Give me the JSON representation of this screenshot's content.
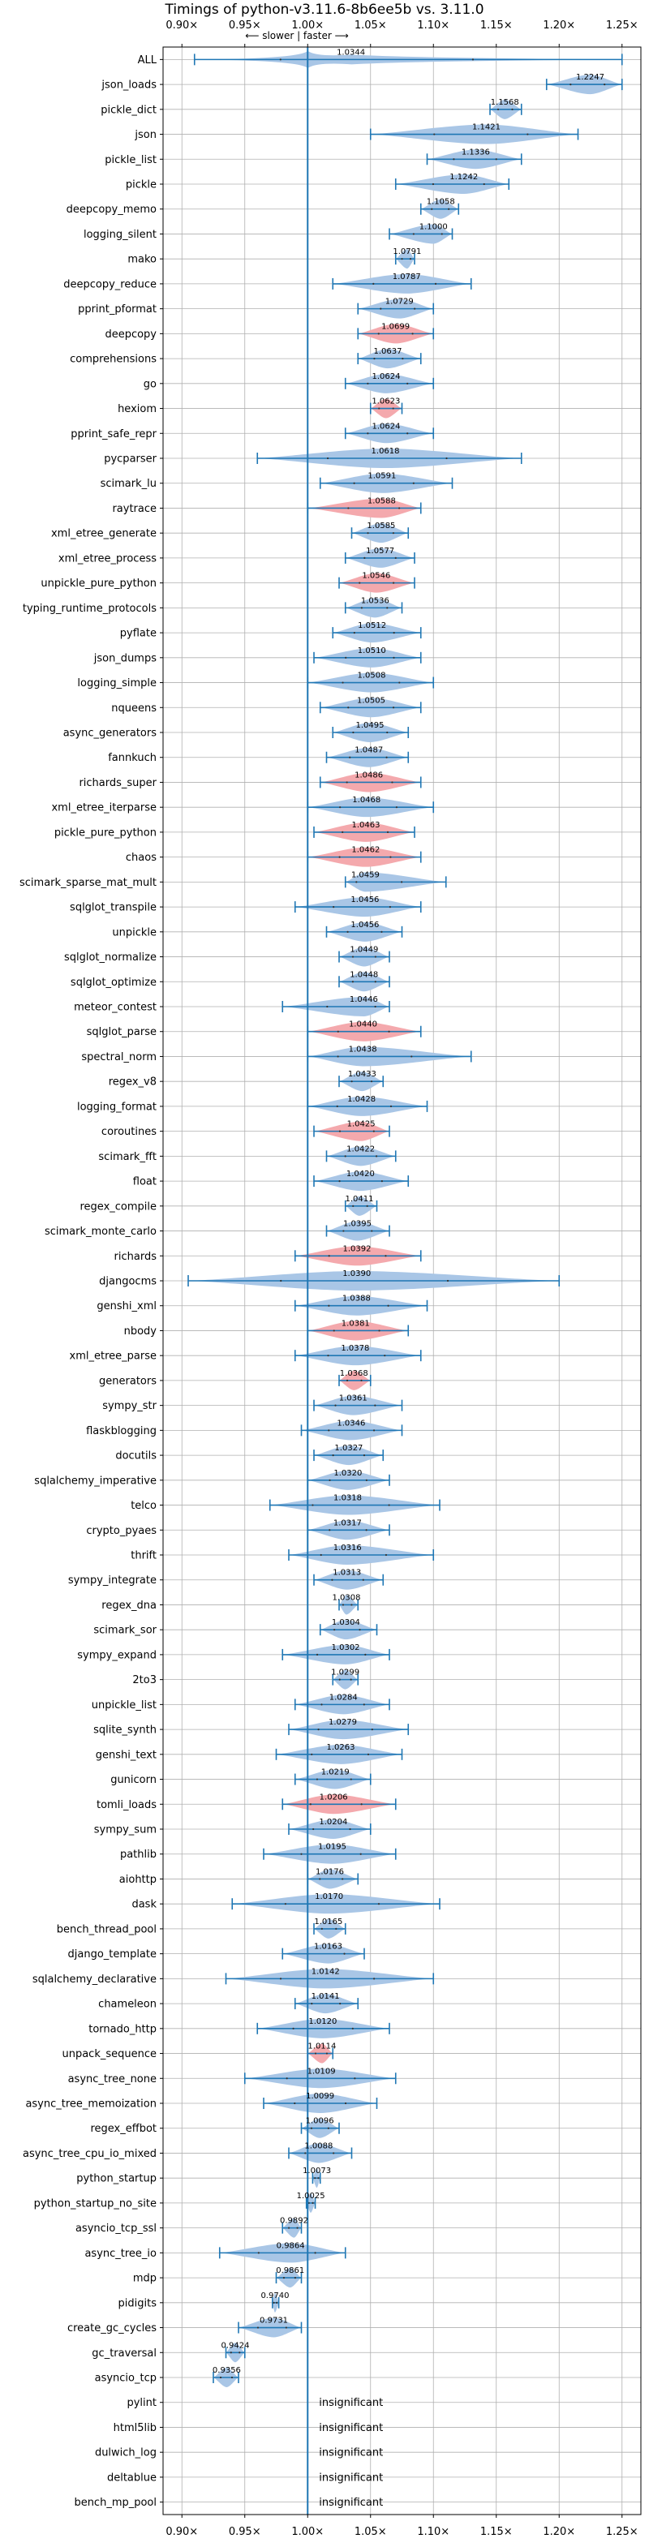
{
  "chart_data": {
    "type": "violin",
    "title": "Timings of python-v3.11.6-8b6ee5b vs. 3.11.0",
    "direction_label": "⟵ slower | faster ⟶",
    "x_ticks": [
      0.9,
      0.95,
      1.0,
      1.05,
      1.1,
      1.15,
      1.2,
      1.25
    ],
    "x_tick_labels": [
      "0.90×",
      "0.95×",
      "1.00×",
      "1.05×",
      "1.10×",
      "1.15×",
      "1.20×",
      "1.25×"
    ],
    "xlim": [
      0.885,
      1.265
    ],
    "grid": true,
    "reference_line": 1.0,
    "insignificant_label": "insignificant",
    "colors": {
      "faster": "#a9c6e6",
      "slower": "#f4a9ad",
      "line": "#1f77b4",
      "grid": "#b0b0b0"
    },
    "benchmarks": [
      {
        "name": "ALL",
        "value": 1.0344,
        "lo": 0.91,
        "hi": 1.25,
        "color": "blue",
        "shape": "all"
      },
      {
        "name": "json_loads",
        "value": 1.2247,
        "lo": 1.19,
        "hi": 1.25,
        "color": "blue"
      },
      {
        "name": "pickle_dict",
        "value": 1.1568,
        "lo": 1.145,
        "hi": 1.17,
        "color": "blue"
      },
      {
        "name": "json",
        "value": 1.1421,
        "lo": 1.05,
        "hi": 1.215,
        "color": "blue"
      },
      {
        "name": "pickle_list",
        "value": 1.1336,
        "lo": 1.095,
        "hi": 1.17,
        "color": "blue"
      },
      {
        "name": "pickle",
        "value": 1.1242,
        "lo": 1.07,
        "hi": 1.16,
        "color": "blue"
      },
      {
        "name": "deepcopy_memo",
        "value": 1.1058,
        "lo": 1.09,
        "hi": 1.12,
        "color": "blue"
      },
      {
        "name": "logging_silent",
        "value": 1.1,
        "lo": 1.065,
        "hi": 1.115,
        "color": "blue"
      },
      {
        "name": "mako",
        "value": 1.0791,
        "lo": 1.07,
        "hi": 1.085,
        "color": "blue"
      },
      {
        "name": "deepcopy_reduce",
        "value": 1.0787,
        "lo": 1.02,
        "hi": 1.13,
        "color": "blue"
      },
      {
        "name": "pprint_pformat",
        "value": 1.0729,
        "lo": 1.04,
        "hi": 1.1,
        "color": "blue"
      },
      {
        "name": "deepcopy",
        "value": 1.0699,
        "lo": 1.04,
        "hi": 1.1,
        "color": "red"
      },
      {
        "name": "comprehensions",
        "value": 1.0637,
        "lo": 1.04,
        "hi": 1.09,
        "color": "blue"
      },
      {
        "name": "go",
        "value": 1.0624,
        "lo": 1.03,
        "hi": 1.1,
        "color": "blue"
      },
      {
        "name": "hexiom",
        "value": 1.0623,
        "lo": 1.05,
        "hi": 1.075,
        "color": "red"
      },
      {
        "name": "pprint_safe_repr",
        "value": 1.0624,
        "lo": 1.03,
        "hi": 1.1,
        "color": "blue"
      },
      {
        "name": "pycparser",
        "value": 1.0618,
        "lo": 0.96,
        "hi": 1.17,
        "color": "blue"
      },
      {
        "name": "scimark_lu",
        "value": 1.0591,
        "lo": 1.01,
        "hi": 1.115,
        "color": "blue"
      },
      {
        "name": "raytrace",
        "value": 1.0588,
        "lo": 1.0,
        "hi": 1.09,
        "color": "red"
      },
      {
        "name": "xml_etree_generate",
        "value": 1.0585,
        "lo": 1.035,
        "hi": 1.08,
        "color": "blue"
      },
      {
        "name": "xml_etree_process",
        "value": 1.0577,
        "lo": 1.03,
        "hi": 1.085,
        "color": "blue"
      },
      {
        "name": "unpickle_pure_python",
        "value": 1.0546,
        "lo": 1.025,
        "hi": 1.085,
        "color": "red"
      },
      {
        "name": "typing_runtime_protocols",
        "value": 1.0536,
        "lo": 1.03,
        "hi": 1.075,
        "color": "blue"
      },
      {
        "name": "pyflate",
        "value": 1.0512,
        "lo": 1.02,
        "hi": 1.09,
        "color": "blue"
      },
      {
        "name": "json_dumps",
        "value": 1.051,
        "lo": 1.005,
        "hi": 1.09,
        "color": "blue"
      },
      {
        "name": "logging_simple",
        "value": 1.0508,
        "lo": 1.0,
        "hi": 1.1,
        "color": "blue"
      },
      {
        "name": "nqueens",
        "value": 1.0505,
        "lo": 1.01,
        "hi": 1.09,
        "color": "blue"
      },
      {
        "name": "async_generators",
        "value": 1.0495,
        "lo": 1.02,
        "hi": 1.08,
        "color": "blue"
      },
      {
        "name": "fannkuch",
        "value": 1.0487,
        "lo": 1.015,
        "hi": 1.08,
        "color": "blue"
      },
      {
        "name": "richards_super",
        "value": 1.0486,
        "lo": 1.01,
        "hi": 1.09,
        "color": "red"
      },
      {
        "name": "xml_etree_iterparse",
        "value": 1.0468,
        "lo": 1.0,
        "hi": 1.1,
        "color": "blue"
      },
      {
        "name": "pickle_pure_python",
        "value": 1.0463,
        "lo": 1.005,
        "hi": 1.085,
        "color": "red"
      },
      {
        "name": "chaos",
        "value": 1.0462,
        "lo": 1.0,
        "hi": 1.09,
        "color": "red"
      },
      {
        "name": "scimark_sparse_mat_mult",
        "value": 1.0459,
        "lo": 1.03,
        "hi": 1.11,
        "color": "blue"
      },
      {
        "name": "sqlglot_transpile",
        "value": 1.0456,
        "lo": 0.99,
        "hi": 1.09,
        "color": "blue"
      },
      {
        "name": "unpickle",
        "value": 1.0456,
        "lo": 1.015,
        "hi": 1.075,
        "color": "blue"
      },
      {
        "name": "sqlglot_normalize",
        "value": 1.0449,
        "lo": 1.025,
        "hi": 1.065,
        "color": "blue"
      },
      {
        "name": "sqlglot_optimize",
        "value": 1.0448,
        "lo": 1.025,
        "hi": 1.065,
        "color": "blue"
      },
      {
        "name": "meteor_contest",
        "value": 1.0446,
        "lo": 0.98,
        "hi": 1.065,
        "color": "blue"
      },
      {
        "name": "sqlglot_parse",
        "value": 1.044,
        "lo": 1.0,
        "hi": 1.09,
        "color": "red"
      },
      {
        "name": "spectral_norm",
        "value": 1.0438,
        "lo": 1.0,
        "hi": 1.13,
        "color": "blue"
      },
      {
        "name": "regex_v8",
        "value": 1.0433,
        "lo": 1.025,
        "hi": 1.06,
        "color": "blue"
      },
      {
        "name": "logging_format",
        "value": 1.0428,
        "lo": 1.0,
        "hi": 1.095,
        "color": "blue"
      },
      {
        "name": "coroutines",
        "value": 1.0425,
        "lo": 1.005,
        "hi": 1.065,
        "color": "red"
      },
      {
        "name": "scimark_fft",
        "value": 1.0422,
        "lo": 1.015,
        "hi": 1.07,
        "color": "blue"
      },
      {
        "name": "float",
        "value": 1.042,
        "lo": 1.005,
        "hi": 1.08,
        "color": "blue"
      },
      {
        "name": "regex_compile",
        "value": 1.0411,
        "lo": 1.03,
        "hi": 1.055,
        "color": "blue"
      },
      {
        "name": "scimark_monte_carlo",
        "value": 1.0395,
        "lo": 1.015,
        "hi": 1.065,
        "color": "blue"
      },
      {
        "name": "richards",
        "value": 1.0392,
        "lo": 0.99,
        "hi": 1.09,
        "color": "red"
      },
      {
        "name": "djangocms",
        "value": 1.039,
        "lo": 0.905,
        "hi": 1.2,
        "color": "blue"
      },
      {
        "name": "genshi_xml",
        "value": 1.0388,
        "lo": 0.99,
        "hi": 1.095,
        "color": "blue"
      },
      {
        "name": "nbody",
        "value": 1.0381,
        "lo": 1.0,
        "hi": 1.08,
        "color": "red"
      },
      {
        "name": "xml_etree_parse",
        "value": 1.0378,
        "lo": 0.99,
        "hi": 1.09,
        "color": "blue"
      },
      {
        "name": "generators",
        "value": 1.0368,
        "lo": 1.025,
        "hi": 1.05,
        "color": "red"
      },
      {
        "name": "sympy_str",
        "value": 1.0361,
        "lo": 1.005,
        "hi": 1.075,
        "color": "blue"
      },
      {
        "name": "flaskblogging",
        "value": 1.0346,
        "lo": 0.995,
        "hi": 1.075,
        "color": "blue"
      },
      {
        "name": "docutils",
        "value": 1.0327,
        "lo": 1.005,
        "hi": 1.06,
        "color": "blue"
      },
      {
        "name": "sqlalchemy_imperative",
        "value": 1.032,
        "lo": 1.0,
        "hi": 1.065,
        "color": "blue"
      },
      {
        "name": "telco",
        "value": 1.0318,
        "lo": 0.97,
        "hi": 1.105,
        "color": "blue"
      },
      {
        "name": "crypto_pyaes",
        "value": 1.0317,
        "lo": 1.0,
        "hi": 1.065,
        "color": "blue"
      },
      {
        "name": "thrift",
        "value": 1.0316,
        "lo": 0.985,
        "hi": 1.1,
        "color": "blue"
      },
      {
        "name": "sympy_integrate",
        "value": 1.0313,
        "lo": 1.005,
        "hi": 1.06,
        "color": "blue"
      },
      {
        "name": "regex_dna",
        "value": 1.0308,
        "lo": 1.025,
        "hi": 1.04,
        "color": "blue"
      },
      {
        "name": "scimark_sor",
        "value": 1.0304,
        "lo": 1.01,
        "hi": 1.055,
        "color": "blue"
      },
      {
        "name": "sympy_expand",
        "value": 1.0302,
        "lo": 0.98,
        "hi": 1.065,
        "color": "blue"
      },
      {
        "name": "2to3",
        "value": 1.0299,
        "lo": 1.02,
        "hi": 1.04,
        "color": "blue"
      },
      {
        "name": "unpickle_list",
        "value": 1.0284,
        "lo": 0.99,
        "hi": 1.065,
        "color": "blue"
      },
      {
        "name": "sqlite_synth",
        "value": 1.0279,
        "lo": 0.985,
        "hi": 1.08,
        "color": "blue"
      },
      {
        "name": "genshi_text",
        "value": 1.0263,
        "lo": 0.975,
        "hi": 1.075,
        "color": "blue"
      },
      {
        "name": "gunicorn",
        "value": 1.0219,
        "lo": 0.99,
        "hi": 1.05,
        "color": "blue"
      },
      {
        "name": "tomli_loads",
        "value": 1.0206,
        "lo": 0.98,
        "hi": 1.07,
        "color": "red"
      },
      {
        "name": "sympy_sum",
        "value": 1.0204,
        "lo": 0.985,
        "hi": 1.05,
        "color": "blue"
      },
      {
        "name": "pathlib",
        "value": 1.0195,
        "lo": 0.965,
        "hi": 1.07,
        "color": "blue"
      },
      {
        "name": "aiohttp",
        "value": 1.0176,
        "lo": 1.0,
        "hi": 1.04,
        "color": "blue"
      },
      {
        "name": "dask",
        "value": 1.017,
        "lo": 0.94,
        "hi": 1.105,
        "color": "blue"
      },
      {
        "name": "bench_thread_pool",
        "value": 1.0165,
        "lo": 1.005,
        "hi": 1.03,
        "color": "blue"
      },
      {
        "name": "django_template",
        "value": 1.0163,
        "lo": 0.98,
        "hi": 1.045,
        "color": "blue"
      },
      {
        "name": "sqlalchemy_declarative",
        "value": 1.0142,
        "lo": 0.935,
        "hi": 1.1,
        "color": "blue"
      },
      {
        "name": "chameleon",
        "value": 1.0141,
        "lo": 0.99,
        "hi": 1.04,
        "color": "blue"
      },
      {
        "name": "tornado_http",
        "value": 1.012,
        "lo": 0.96,
        "hi": 1.065,
        "color": "blue"
      },
      {
        "name": "unpack_sequence",
        "value": 1.0114,
        "lo": 1.0,
        "hi": 1.02,
        "color": "red"
      },
      {
        "name": "async_tree_none",
        "value": 1.0109,
        "lo": 0.95,
        "hi": 1.07,
        "color": "blue"
      },
      {
        "name": "async_tree_memoization",
        "value": 1.0099,
        "lo": 0.965,
        "hi": 1.055,
        "color": "blue"
      },
      {
        "name": "regex_effbot",
        "value": 1.0096,
        "lo": 0.995,
        "hi": 1.025,
        "color": "blue"
      },
      {
        "name": "async_tree_cpu_io_mixed",
        "value": 1.0088,
        "lo": 0.985,
        "hi": 1.035,
        "color": "blue"
      },
      {
        "name": "python_startup",
        "value": 1.0073,
        "lo": 1.004,
        "hi": 1.01,
        "color": "blue"
      },
      {
        "name": "python_startup_no_site",
        "value": 1.0025,
        "lo": 0.999,
        "hi": 1.006,
        "color": "blue"
      },
      {
        "name": "asyncio_tcp_ssl",
        "value": 0.9892,
        "lo": 0.98,
        "hi": 0.995,
        "color": "blue"
      },
      {
        "name": "async_tree_io",
        "value": 0.9864,
        "lo": 0.93,
        "hi": 1.03,
        "color": "blue"
      },
      {
        "name": "mdp",
        "value": 0.9861,
        "lo": 0.975,
        "hi": 0.995,
        "color": "blue"
      },
      {
        "name": "pidigits",
        "value": 0.974,
        "lo": 0.972,
        "hi": 0.977,
        "color": "blue"
      },
      {
        "name": "create_gc_cycles",
        "value": 0.9731,
        "lo": 0.945,
        "hi": 0.995,
        "color": "blue"
      },
      {
        "name": "gc_traversal",
        "value": 0.9424,
        "lo": 0.935,
        "hi": 0.95,
        "color": "blue"
      },
      {
        "name": "asyncio_tcp",
        "value": 0.9356,
        "lo": 0.925,
        "hi": 0.945,
        "color": "blue"
      },
      {
        "name": "pylint",
        "insignificant": true
      },
      {
        "name": "html5lib",
        "insignificant": true
      },
      {
        "name": "dulwich_log",
        "insignificant": true
      },
      {
        "name": "deltablue",
        "insignificant": true
      },
      {
        "name": "bench_mp_pool",
        "insignificant": true
      }
    ]
  }
}
